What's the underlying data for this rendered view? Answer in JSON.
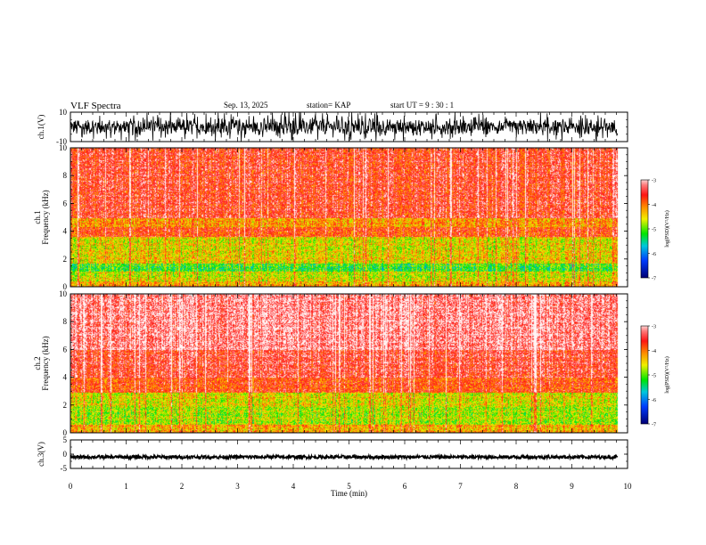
{
  "header": {
    "title": "VLF Spectra",
    "date": "Sep. 13, 2025",
    "station": "station= KAP",
    "start": "start  UT =  9 : 30 : 1"
  },
  "chart_data": [
    {
      "type": "line",
      "name": "waveform-ch1",
      "ylabel": "ch.1(V)",
      "ylim": [
        -10,
        10
      ],
      "yticks": [
        "10",
        "-10"
      ],
      "xlim": [
        0,
        10
      ],
      "signal_span": [
        0,
        9.82
      ],
      "amplitude": "approx ±3 V noise with bursts to ±10 V"
    },
    {
      "type": "heatmap",
      "name": "spectrogram-ch1",
      "ylabel": "ch.1\nFrequency (kHz)",
      "ylim": [
        0,
        10
      ],
      "yticks": [
        "0",
        "2",
        "4",
        "6",
        "8",
        "10"
      ],
      "xlim": [
        0,
        10
      ],
      "bands": [
        {
          "from": 0.0,
          "to": 0.4,
          "level": -4.3
        },
        {
          "from": 0.4,
          "to": 1.1,
          "level": -4.7
        },
        {
          "from": 1.1,
          "to": 1.7,
          "level": -5.2
        },
        {
          "from": 1.7,
          "to": 2.5,
          "level": -4.5
        },
        {
          "from": 2.5,
          "to": 3.6,
          "level": -4.6
        },
        {
          "from": 3.6,
          "to": 4.3,
          "level": -3.8
        },
        {
          "from": 4.3,
          "to": 5.0,
          "level": -4.2
        },
        {
          "from": 5.0,
          "to": 10.0,
          "level": -3.6
        }
      ],
      "colorbar": {
        "label": "log(PSD)(V²/Hz)",
        "range": [
          -7,
          -3
        ],
        "ticks": [
          "-3",
          "-4",
          "-5",
          "-6",
          "-7"
        ]
      }
    },
    {
      "type": "heatmap",
      "name": "spectrogram-ch2",
      "ylabel": "ch.2\nFrequency (kHz)",
      "ylim": [
        0,
        10
      ],
      "yticks": [
        "0",
        "2",
        "4",
        "6",
        "8",
        "10"
      ],
      "xlim": [
        0,
        10
      ],
      "bands": [
        {
          "from": 0.0,
          "to": 0.6,
          "level": -4.3
        },
        {
          "from": 0.6,
          "to": 1.9,
          "level": -4.8
        },
        {
          "from": 1.9,
          "to": 2.9,
          "level": -4.6
        },
        {
          "from": 2.9,
          "to": 4.0,
          "level": -3.8
        },
        {
          "from": 4.0,
          "to": 6.0,
          "level": -3.5
        },
        {
          "from": 6.0,
          "to": 10.0,
          "level": -3.2
        }
      ],
      "colorbar": {
        "label": "log(PSD)(V²/Hz)",
        "range": [
          -7,
          -3
        ],
        "ticks": [
          "-3",
          "-4",
          "-5",
          "-6",
          "-7"
        ]
      }
    },
    {
      "type": "line",
      "name": "waveform-ch3",
      "ylabel": "ch.3(V)",
      "ylim": [
        -5,
        5
      ],
      "yticks": [
        "5",
        "0",
        "-5"
      ],
      "xlim": [
        0,
        10
      ],
      "signal_span": [
        0,
        9.82
      ],
      "amplitude": "approx 0.5 V noise around -1 V"
    }
  ],
  "xaxis": {
    "label": "Time (min)",
    "ticks": [
      "0",
      "1",
      "2",
      "3",
      "4",
      "5",
      "6",
      "7",
      "8",
      "9",
      "10"
    ]
  }
}
